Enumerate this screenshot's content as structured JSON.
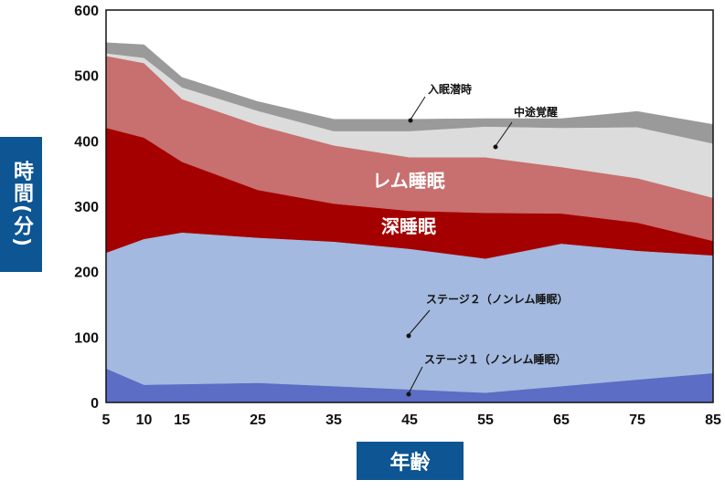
{
  "chart_data": {
    "type": "area",
    "stacked": true,
    "x": [
      5,
      10,
      15,
      25,
      35,
      45,
      55,
      65,
      75,
      85
    ],
    "xlabel": "年齢",
    "ylabel": "時間(分)",
    "ylim": [
      0,
      600
    ],
    "yticks": [
      0,
      100,
      200,
      300,
      400,
      500,
      600
    ],
    "series": [
      {
        "name": "ステージ１(ノンレム睡眠)",
        "color": "#5b6dc4",
        "values": [
          52,
          27,
          28,
          30,
          25,
          20,
          15,
          25,
          35,
          45
        ]
      },
      {
        "name": "ステージ２(ノンレム睡眠)",
        "color": "#a3b9df",
        "values": [
          177,
          223,
          232,
          222,
          221,
          215,
          205,
          218,
          197,
          180
        ]
      },
      {
        "name": "深睡眠",
        "color": "#a50000",
        "values": [
          191,
          155,
          108,
          73,
          58,
          58,
          70,
          46,
          43,
          22
        ]
      },
      {
        "name": "レム睡眠",
        "color": "#c86f6f",
        "values": [
          110,
          114,
          96,
          99,
          89,
          82,
          85,
          71,
          68,
          66
        ]
      },
      {
        "name": "中途覚醒",
        "color": "#dcdcdc",
        "values": [
          4,
          8,
          18,
          22,
          22,
          40,
          47,
          60,
          78,
          83
        ]
      },
      {
        "name": "入眠潜時",
        "color": "#9a9a9a",
        "values": [
          16,
          20,
          15,
          14,
          18,
          18,
          12,
          14,
          24,
          29
        ]
      }
    ],
    "labels": {
      "rem": "レム睡眠",
      "deep": "深睡眠",
      "stage2": "ステージ２（ノンレム睡眠）",
      "stage1": "ステージ１（ノンレム睡眠）",
      "waso": "中途覚醒",
      "latency": "入眠潜時"
    }
  }
}
